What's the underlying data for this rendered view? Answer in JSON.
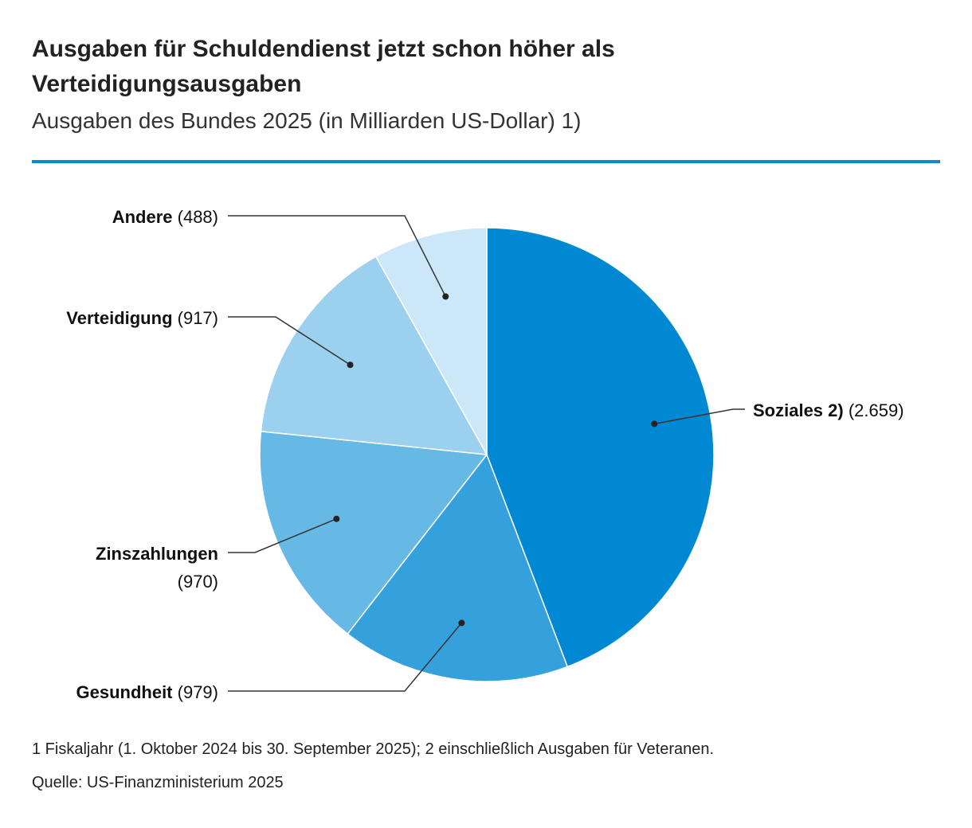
{
  "chart": {
    "title": "Ausgaben für Schuldendienst jetzt schon höher als Verteidigungsausgaben",
    "subtitle": "Ausgaben des Bundes 2025 (in Milliarden US-Dollar) 1)",
    "footnote": "1 Fiskaljahr (1. Oktober 2024 bis 30. September 2025); 2 einschließlich Ausgaben für Veteranen.",
    "source": "Quelle: US-Finanzministerium 2025"
  },
  "chart_data": {
    "type": "pie",
    "title": "Ausgaben für Schuldendienst jetzt schon höher als Verteidigungsausgaben",
    "subtitle": "Ausgaben des Bundes 2025 (in Milliarden US-Dollar) 1)",
    "unit": "Milliarden US-Dollar",
    "start": "12 o'clock, clockwise",
    "slices": [
      {
        "name": "Soziales 2)",
        "value": 2659,
        "value_label": "(2.659)",
        "color": "#0089d2"
      },
      {
        "name": "Gesundheit",
        "value": 979,
        "value_label": "(979)",
        "color": "#35a1dc"
      },
      {
        "name": "Zinszahlungen",
        "value": 970,
        "value_label": "(970)",
        "color": "#66b8e5"
      },
      {
        "name": "Verteidigung",
        "value": 917,
        "value_label": "(917)",
        "color": "#9bd0ee"
      },
      {
        "name": "Andere",
        "value": 488,
        "value_label": "(488)",
        "color": "#cce7f7"
      }
    ]
  }
}
